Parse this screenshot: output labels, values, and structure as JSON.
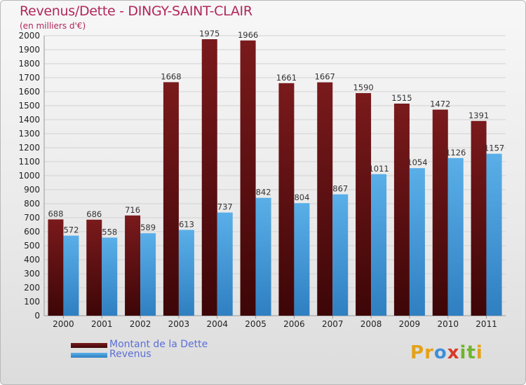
{
  "title": "Revenus/Dette - DINGY-SAINT-CLAIR",
  "subtitle": "(en milliers d'€)",
  "colors": {
    "debt": "#7a1a1c",
    "debt_dark": "#3d0607",
    "revenue": "#5aafe8",
    "revenue_dark": "#2f7fc1",
    "title": "#b1265a",
    "legend_text": "#5b6fd6"
  },
  "logo": {
    "text": "Proxiti",
    "letters": [
      {
        "ch": "P",
        "color": "#e3a21a"
      },
      {
        "ch": "r",
        "color": "#e3a21a"
      },
      {
        "ch": "o",
        "color": "#3e8fd8"
      },
      {
        "ch": "x",
        "color": "#d83a2a"
      },
      {
        "ch": "i",
        "color": "#6fb52c"
      },
      {
        "ch": "t",
        "color": "#6fb52c"
      },
      {
        "ch": "i",
        "color": "#e3a21a"
      }
    ]
  },
  "chart_data": {
    "type": "bar",
    "categories": [
      "2000",
      "2001",
      "2002",
      "2003",
      "2004",
      "2005",
      "2006",
      "2007",
      "2008",
      "2009",
      "2010",
      "2011"
    ],
    "series": [
      {
        "name": "Montant de la Dette",
        "values": [
          688,
          686,
          716,
          1668,
          1975,
          1966,
          1661,
          1667,
          1590,
          1515,
          1472,
          1391
        ]
      },
      {
        "name": "Revenus",
        "values": [
          572,
          558,
          589,
          613,
          737,
          842,
          804,
          867,
          1011,
          1054,
          1126,
          1157
        ]
      }
    ],
    "title": "Revenus/Dette - DINGY-SAINT-CLAIR",
    "subtitle": "(en milliers d'€)",
    "ylim": [
      0,
      2000
    ],
    "yticks": [
      0,
      100,
      200,
      300,
      400,
      500,
      600,
      700,
      800,
      900,
      1000,
      1100,
      1200,
      1300,
      1400,
      1500,
      1600,
      1700,
      1800,
      1900,
      2000
    ],
    "grid": true,
    "legend": "bottom-left"
  }
}
